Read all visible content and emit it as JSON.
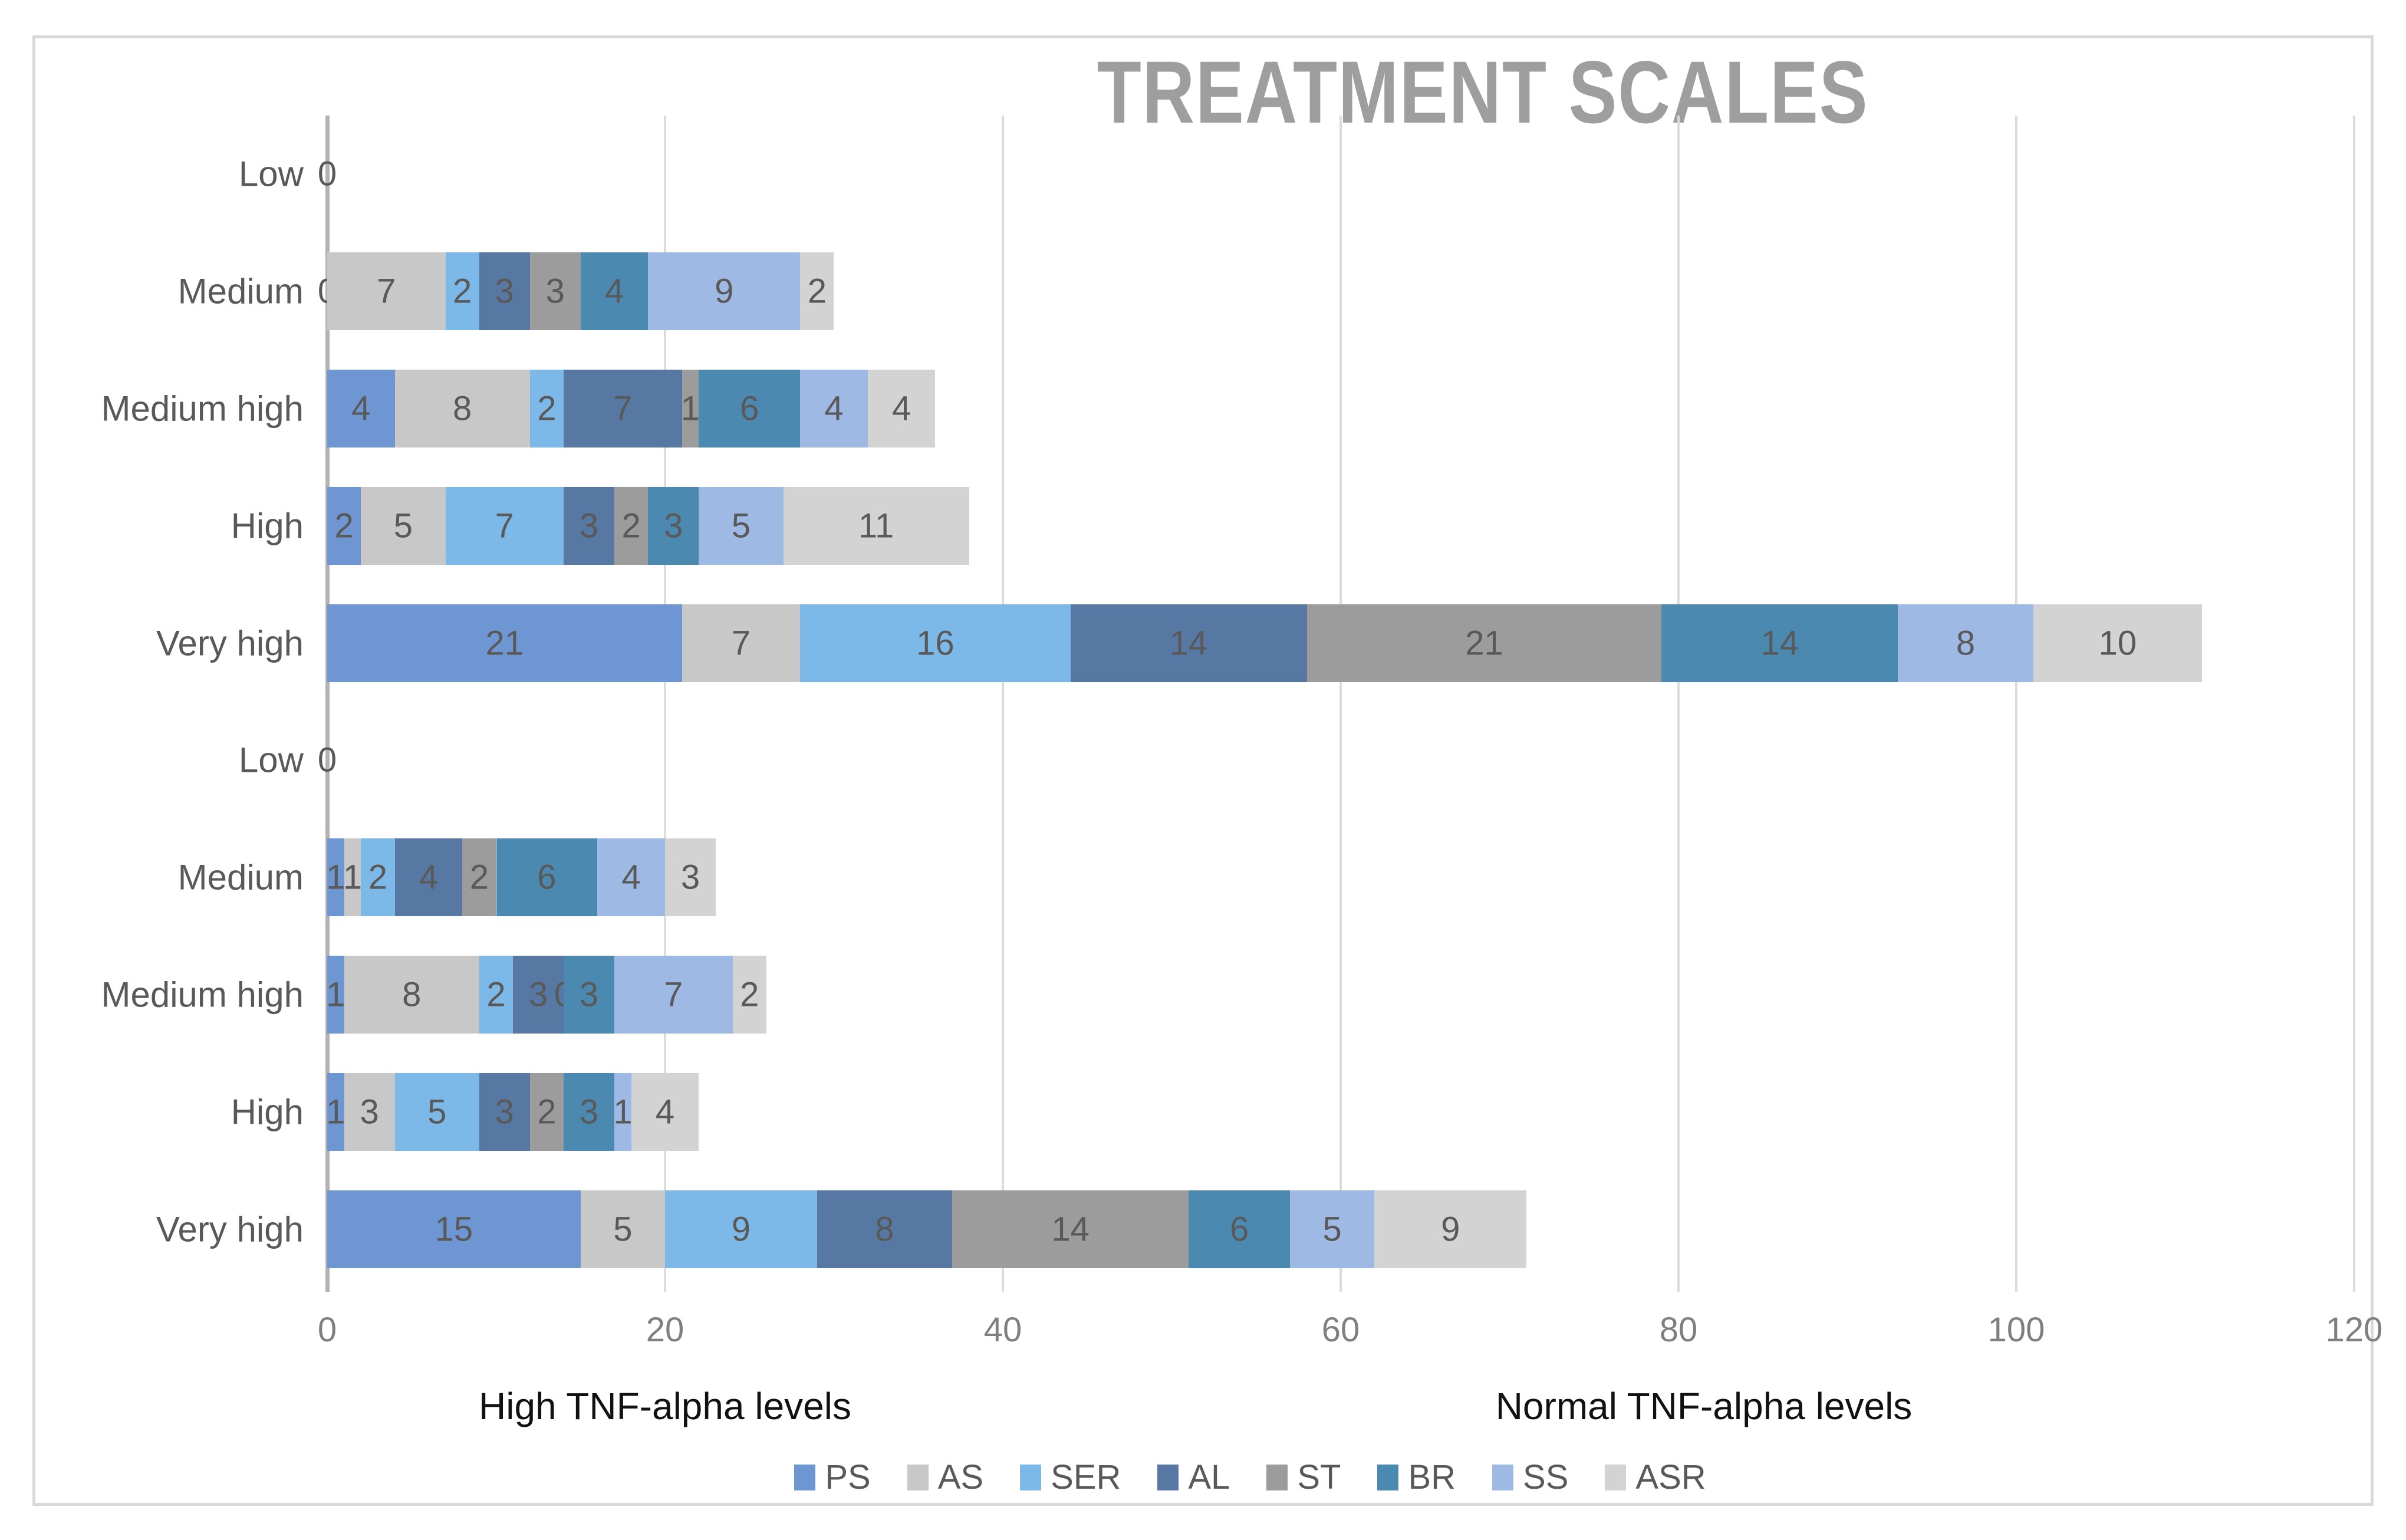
{
  "chart_data": {
    "type": "bar",
    "orientation": "horizontal",
    "stacked": true,
    "title": "TREATMENT SCALES",
    "categories": [
      "Low",
      "Medium",
      "Medium high",
      "High",
      "Very high",
      "Low",
      "Medium",
      "Medium high",
      "High",
      "Very high"
    ],
    "group_labels": [
      "High TNF-alpha levels",
      "Normal TNF-alpha levels"
    ],
    "series": [
      {
        "name": "PS",
        "color": "#6E96D2",
        "values": [
          0,
          0,
          4,
          2,
          21,
          0,
          1,
          1,
          1,
          15
        ]
      },
      {
        "name": "AS",
        "color": "#C8C8C8",
        "values": [
          0,
          7,
          8,
          5,
          7,
          0,
          1,
          8,
          3,
          5
        ]
      },
      {
        "name": "SER",
        "color": "#7CB9E8",
        "values": [
          0,
          2,
          2,
          7,
          16,
          0,
          2,
          2,
          5,
          9
        ]
      },
      {
        "name": "AL",
        "color": "#5878A4",
        "values": [
          0,
          3,
          7,
          3,
          14,
          0,
          4,
          3,
          3,
          8
        ]
      },
      {
        "name": "ST",
        "color": "#9C9C9C",
        "values": [
          0,
          3,
          1,
          2,
          21,
          0,
          2,
          0,
          2,
          14
        ]
      },
      {
        "name": "BR",
        "color": "#4C89B0",
        "values": [
          0,
          4,
          6,
          3,
          14,
          0,
          6,
          3,
          3,
          6
        ]
      },
      {
        "name": "SS",
        "color": "#9DB9E4",
        "values": [
          0,
          9,
          4,
          5,
          8,
          0,
          4,
          7,
          1,
          5
        ]
      },
      {
        "name": "ASR",
        "color": "#D3D3D3",
        "values": [
          0,
          2,
          4,
          11,
          10,
          0,
          3,
          2,
          4,
          9
        ]
      }
    ],
    "xlim": [
      0,
      120
    ],
    "xticks": [
      0,
      20,
      40,
      60,
      80,
      100,
      120
    ],
    "grid": true,
    "legend_position": "bottom"
  },
  "colors": {
    "title": "#9E9E9E",
    "category_label": "#595959",
    "data_label": "#595959",
    "tick_label": "#7F7F7F",
    "group_label": "#111111",
    "gridline": "#DCDCDC",
    "axis_line": "#B3B3B3",
    "frame_border": "#D9D9D9"
  }
}
